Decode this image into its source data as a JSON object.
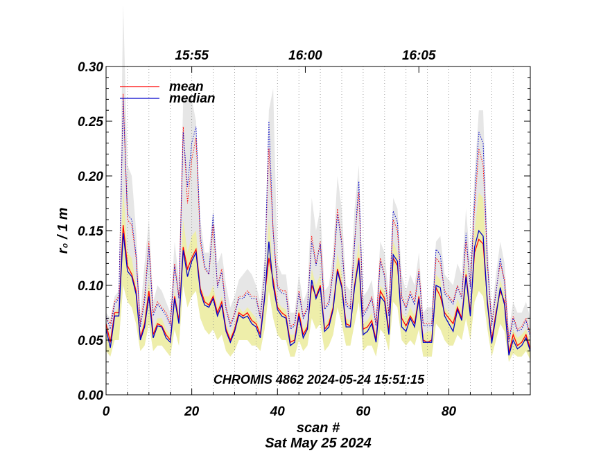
{
  "chart_data": {
    "type": "line",
    "title": "",
    "xlabel": "scan #",
    "ylabel": "r₀ / 1 m",
    "date_label": "Sat May 25 2024",
    "annotation": "CHROMIS 4862 2024-05-24 15:51:15",
    "xlim": [
      0,
      99
    ],
    "ylim": [
      0.0,
      0.3
    ],
    "x_ticks": [
      0,
      20,
      40,
      60,
      80
    ],
    "y_ticks": [
      0.0,
      0.05,
      0.1,
      0.15,
      0.2,
      0.25,
      0.3
    ],
    "y_tick_labels": [
      "0.00",
      "0.05",
      "0.10",
      "0.15",
      "0.20",
      "0.25",
      "0.30"
    ],
    "top_axis": [
      {
        "label": "15:55",
        "x": 20
      },
      {
        "label": "16:00",
        "x": 46.5
      },
      {
        "label": "16:05",
        "x": 73
      }
    ],
    "scan_boundaries": [
      5,
      10,
      15,
      20,
      25,
      30,
      35,
      40,
      45,
      50,
      55,
      60,
      65,
      70,
      75,
      80,
      85,
      90,
      95
    ],
    "legend": [
      {
        "name": "mean",
        "color": "#ff0000"
      },
      {
        "name": "median",
        "color": "#0000cc"
      }
    ],
    "series": [
      {
        "name": "mean",
        "color": "#ff0000",
        "style": "solid",
        "values": [
          0.065,
          0.048,
          0.075,
          0.075,
          0.155,
          0.118,
          0.11,
          0.095,
          0.052,
          0.065,
          0.095,
          0.055,
          0.065,
          0.063,
          0.055,
          0.05,
          0.09,
          0.068,
          0.135,
          0.115,
          0.125,
          0.133,
          0.097,
          0.085,
          0.082,
          0.09,
          0.075,
          0.085,
          0.06,
          0.05,
          0.06,
          0.075,
          0.072,
          0.075,
          0.068,
          0.065,
          0.055,
          0.09,
          0.125,
          0.105,
          0.08,
          0.075,
          0.072,
          0.048,
          0.05,
          0.075,
          0.055,
          0.062,
          0.1,
          0.09,
          0.1,
          0.06,
          0.065,
          0.08,
          0.115,
          0.1,
          0.065,
          0.063,
          0.1,
          0.125,
          0.06,
          0.062,
          0.068,
          0.05,
          0.095,
          0.088,
          0.058,
          0.125,
          0.118,
          0.07,
          0.063,
          0.072,
          0.065,
          0.09,
          0.05,
          0.048,
          0.05,
          0.098,
          0.09,
          0.075,
          0.07,
          0.065,
          0.08,
          0.07,
          0.11,
          0.075,
          0.13,
          0.142,
          0.138,
          0.085,
          0.05,
          0.075,
          0.095,
          0.085,
          0.038,
          0.055,
          0.045,
          0.048,
          0.055,
          0.042
        ]
      },
      {
        "name": "median",
        "color": "#0000cc",
        "style": "solid",
        "values": [
          0.06,
          0.043,
          0.072,
          0.072,
          0.148,
          0.113,
          0.108,
          0.092,
          0.05,
          0.062,
          0.09,
          0.052,
          0.063,
          0.062,
          0.052,
          0.048,
          0.088,
          0.065,
          0.132,
          0.108,
          0.122,
          0.13,
          0.094,
          0.082,
          0.08,
          0.088,
          0.072,
          0.082,
          0.058,
          0.048,
          0.058,
          0.073,
          0.07,
          0.072,
          0.065,
          0.062,
          0.052,
          0.088,
          0.14,
          0.1,
          0.078,
          0.072,
          0.07,
          0.045,
          0.048,
          0.072,
          0.052,
          0.06,
          0.105,
          0.088,
          0.098,
          0.058,
          0.062,
          0.078,
          0.113,
          0.098,
          0.062,
          0.062,
          0.098,
          0.123,
          0.055,
          0.058,
          0.065,
          0.048,
          0.09,
          0.085,
          0.055,
          0.128,
          0.122,
          0.062,
          0.058,
          0.07,
          0.062,
          0.088,
          0.048,
          0.048,
          0.048,
          0.1,
          0.098,
          0.072,
          0.065,
          0.058,
          0.078,
          0.068,
          0.108,
          0.072,
          0.135,
          0.15,
          0.145,
          0.083,
          0.047,
          0.072,
          0.098,
          0.082,
          0.036,
          0.05,
          0.042,
          0.045,
          0.052,
          0.04
        ]
      },
      {
        "name": "mean upper",
        "color": "#ff0000",
        "style": "dotted",
        "values": [
          0.07,
          0.065,
          0.085,
          0.09,
          0.275,
          0.16,
          0.155,
          0.125,
          0.065,
          0.09,
          0.14,
          0.075,
          0.085,
          0.08,
          0.075,
          0.065,
          0.12,
          0.09,
          0.245,
          0.175,
          0.215,
          0.235,
          0.14,
          0.115,
          0.11,
          0.155,
          0.1,
          0.115,
          0.08,
          0.065,
          0.075,
          0.09,
          0.09,
          0.095,
          0.09,
          0.09,
          0.072,
          0.11,
          0.225,
          0.15,
          0.1,
          0.095,
          0.095,
          0.062,
          0.065,
          0.095,
          0.072,
          0.08,
          0.145,
          0.12,
          0.14,
          0.08,
          0.085,
          0.115,
          0.17,
          0.14,
          0.085,
          0.08,
          0.14,
          0.185,
          0.075,
          0.08,
          0.09,
          0.065,
          0.125,
          0.11,
          0.075,
          0.16,
          0.15,
          0.09,
          0.08,
          0.095,
          0.085,
          0.115,
          0.065,
          0.065,
          0.065,
          0.125,
          0.12,
          0.095,
          0.09,
          0.085,
          0.1,
          0.09,
          0.14,
          0.1,
          0.17,
          0.225,
          0.21,
          0.12,
          0.065,
          0.095,
          0.12,
          0.105,
          0.05,
          0.072,
          0.06,
          0.062,
          0.07,
          0.055
        ]
      },
      {
        "name": "median upper",
        "color": "#0000cc",
        "style": "dotted",
        "values": [
          0.072,
          0.06,
          0.083,
          0.088,
          0.27,
          0.165,
          0.16,
          0.128,
          0.062,
          0.085,
          0.135,
          0.072,
          0.083,
          0.078,
          0.072,
          0.063,
          0.118,
          0.088,
          0.24,
          0.19,
          0.23,
          0.245,
          0.145,
          0.118,
          0.11,
          0.165,
          0.098,
          0.112,
          0.078,
          0.062,
          0.073,
          0.088,
          0.088,
          0.093,
          0.088,
          0.088,
          0.07,
          0.108,
          0.25,
          0.148,
          0.098,
          0.093,
          0.092,
          0.06,
          0.063,
          0.093,
          0.07,
          0.078,
          0.14,
          0.118,
          0.138,
          0.078,
          0.083,
          0.112,
          0.165,
          0.138,
          0.082,
          0.078,
          0.138,
          0.195,
          0.072,
          0.078,
          0.088,
          0.063,
          0.122,
          0.108,
          0.072,
          0.168,
          0.158,
          0.088,
          0.078,
          0.092,
          0.082,
          0.112,
          0.063,
          0.063,
          0.063,
          0.133,
          0.128,
          0.092,
          0.088,
          0.083,
          0.098,
          0.088,
          0.148,
          0.098,
          0.18,
          0.24,
          0.23,
          0.12,
          0.063,
          0.093,
          0.125,
          0.102,
          0.048,
          0.07,
          0.058,
          0.06,
          0.068,
          0.053
        ]
      },
      {
        "name": "max band",
        "color": "#e6e6e6",
        "style": "area",
        "values": [
          0.075,
          0.07,
          0.09,
          0.095,
          0.36,
          0.21,
          0.2,
          0.15,
          0.075,
          0.12,
          0.16,
          0.085,
          0.1,
          0.095,
          0.085,
          0.075,
          0.14,
          0.105,
          0.27,
          0.27,
          0.27,
          0.25,
          0.16,
          0.13,
          0.13,
          0.17,
          0.12,
          0.13,
          0.1,
          0.08,
          0.09,
          0.105,
          0.11,
          0.115,
          0.11,
          0.1,
          0.085,
          0.125,
          0.26,
          0.28,
          0.12,
          0.11,
          0.11,
          0.075,
          0.075,
          0.11,
          0.085,
          0.095,
          0.18,
          0.15,
          0.17,
          0.095,
          0.1,
          0.13,
          0.2,
          0.17,
          0.1,
          0.095,
          0.17,
          0.21,
          0.09,
          0.095,
          0.105,
          0.075,
          0.14,
          0.13,
          0.09,
          0.18,
          0.17,
          0.11,
          0.095,
          0.11,
          0.1,
          0.13,
          0.075,
          0.08,
          0.08,
          0.14,
          0.145,
          0.11,
          0.105,
          0.1,
          0.12,
          0.11,
          0.17,
          0.12,
          0.2,
          0.26,
          0.26,
          0.14,
          0.075,
          0.11,
          0.14,
          0.12,
          0.06,
          0.085,
          0.075,
          0.075,
          0.085,
          0.07
        ]
      },
      {
        "name": "percentile band high",
        "color": "#eeeeaa",
        "style": "area",
        "values": [
          0.065,
          0.055,
          0.075,
          0.08,
          0.19,
          0.13,
          0.125,
          0.1,
          0.055,
          0.075,
          0.105,
          0.06,
          0.07,
          0.07,
          0.06,
          0.055,
          0.095,
          0.075,
          0.16,
          0.13,
          0.145,
          0.15,
          0.1,
          0.09,
          0.09,
          0.1,
          0.08,
          0.09,
          0.065,
          0.055,
          0.065,
          0.08,
          0.075,
          0.08,
          0.075,
          0.07,
          0.06,
          0.095,
          0.16,
          0.115,
          0.085,
          0.08,
          0.078,
          0.055,
          0.055,
          0.08,
          0.06,
          0.068,
          0.115,
          0.1,
          0.11,
          0.065,
          0.07,
          0.088,
          0.13,
          0.11,
          0.07,
          0.068,
          0.11,
          0.14,
          0.065,
          0.068,
          0.075,
          0.055,
          0.1,
          0.095,
          0.065,
          0.14,
          0.13,
          0.075,
          0.07,
          0.08,
          0.072,
          0.095,
          0.055,
          0.058,
          0.058,
          0.11,
          0.105,
          0.08,
          0.075,
          0.07,
          0.088,
          0.078,
          0.12,
          0.082,
          0.15,
          0.185,
          0.18,
          0.095,
          0.055,
          0.082,
          0.105,
          0.092,
          0.045,
          0.06,
          0.052,
          0.055,
          0.06,
          0.048
        ]
      },
      {
        "name": "percentile band low",
        "color": "#eeeeaa",
        "style": "area",
        "values": [
          0.04,
          0.035,
          0.05,
          0.05,
          0.1,
          0.085,
          0.08,
          0.065,
          0.04,
          0.045,
          0.065,
          0.04,
          0.045,
          0.045,
          0.04,
          0.035,
          0.06,
          0.045,
          0.1,
          0.08,
          0.09,
          0.095,
          0.07,
          0.06,
          0.055,
          0.06,
          0.05,
          0.055,
          0.04,
          0.035,
          0.04,
          0.05,
          0.05,
          0.05,
          0.045,
          0.045,
          0.04,
          0.06,
          0.095,
          0.07,
          0.055,
          0.05,
          0.05,
          0.035,
          0.035,
          0.05,
          0.04,
          0.045,
          0.07,
          0.06,
          0.065,
          0.04,
          0.045,
          0.055,
          0.08,
          0.065,
          0.045,
          0.045,
          0.065,
          0.085,
          0.04,
          0.045,
          0.045,
          0.035,
          0.06,
          0.055,
          0.04,
          0.085,
          0.08,
          0.05,
          0.045,
          0.05,
          0.045,
          0.06,
          0.035,
          0.035,
          0.035,
          0.065,
          0.06,
          0.05,
          0.045,
          0.045,
          0.055,
          0.05,
          0.07,
          0.05,
          0.085,
          0.095,
          0.09,
          0.06,
          0.035,
          0.05,
          0.065,
          0.058,
          0.03,
          0.038,
          0.035,
          0.035,
          0.04,
          0.032
        ]
      }
    ]
  }
}
